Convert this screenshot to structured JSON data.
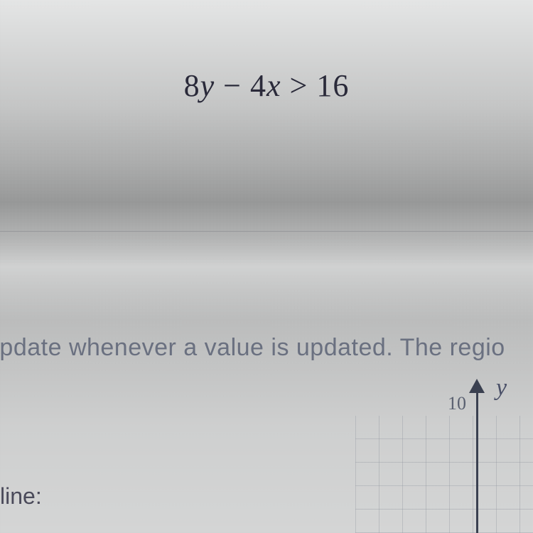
{
  "equation": {
    "coeff_y": "8",
    "var_y": "y",
    "minus": "−",
    "coeff_x": "4",
    "var_x": "x",
    "operator": ">",
    "rhs": "16"
  },
  "instruction_text": "update whenever a value is updated. The regio",
  "line_label": "line:",
  "graph": {
    "y_axis_label": "y",
    "y_tick_top": "10",
    "axis_color": "#3a4050",
    "grid_color": "#8c919b",
    "label_color": "#4a5068"
  },
  "colors": {
    "text_primary": "#2a2a3a",
    "text_instruction": "#6a7080",
    "text_label": "#4a4a5a"
  }
}
